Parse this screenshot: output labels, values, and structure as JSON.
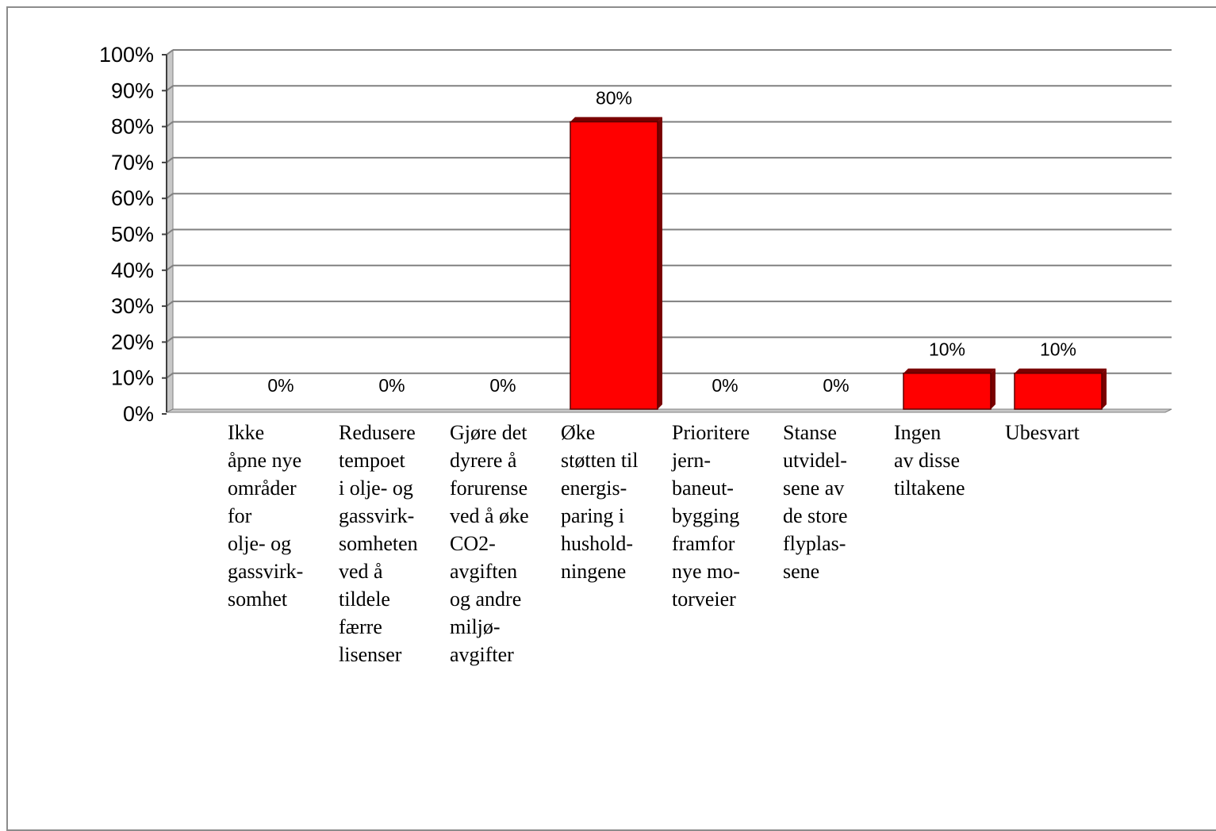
{
  "chart_data": {
    "type": "bar",
    "categories": [
      [
        "Ikke",
        "åpne nye",
        "områder",
        "for",
        "olje- og",
        "gassvirk-",
        "somhet"
      ],
      [
        "Redusere",
        "tempoet",
        "i olje- og",
        "gassvirk-",
        "somheten",
        "ved å",
        "tildele",
        "færre",
        "lisenser"
      ],
      [
        "Gjøre det",
        "dyrere å",
        "forurense",
        "ved å øke",
        "CO2-",
        "avgiften",
        "og andre",
        "miljø-",
        "avgifter"
      ],
      [
        "Øke",
        "støtten til",
        "energis-",
        "paring i",
        "hushold-",
        "ningene"
      ],
      [
        "Prioritere",
        "jern-",
        "baneut-",
        "bygging",
        "framfor",
        "nye mo-",
        "torveier"
      ],
      [
        "Stanse",
        "utvidel-",
        "sene av",
        "de store",
        "flyplas-",
        "sene"
      ],
      [
        "Ingen",
        "av disse",
        "tiltakene"
      ],
      [
        "Ubesvart"
      ]
    ],
    "values": [
      0,
      0,
      0,
      80,
      0,
      0,
      10,
      10
    ],
    "value_labels": [
      "0%",
      "0%",
      "0%",
      "80%",
      "0%",
      "0%",
      "10%",
      "10%"
    ],
    "y_ticks": [
      "0%",
      "10%",
      "20%",
      "30%",
      "40%",
      "50%",
      "60%",
      "70%",
      "80%",
      "90%",
      "100%"
    ],
    "ylim": [
      0,
      100
    ],
    "grid": true,
    "bar_color": "#ff0000",
    "bar_dark_color": "#7a0000",
    "gridline_color": "#808080",
    "wall_color": "#c8c8c8"
  }
}
